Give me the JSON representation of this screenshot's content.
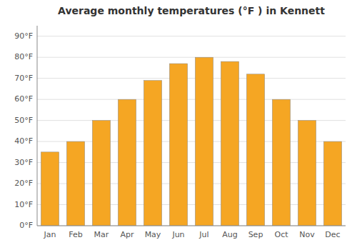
{
  "chart_data": {
    "type": "bar",
    "title": "Average monthly temperatures (°F ) in Kennett",
    "categories": [
      "Jan",
      "Feb",
      "Mar",
      "Apr",
      "May",
      "Jun",
      "Jul",
      "Aug",
      "Sep",
      "Oct",
      "Nov",
      "Dec"
    ],
    "values": [
      35,
      40,
      50,
      60,
      69,
      77,
      80,
      78,
      72,
      60,
      50,
      40
    ],
    "color": "#F5A623",
    "ylim": [
      0,
      95
    ],
    "yticks": [
      {
        "value": 0,
        "label": "0°F"
      },
      {
        "value": 10,
        "label": "10°F"
      },
      {
        "value": 20,
        "label": "20°F"
      },
      {
        "value": 30,
        "label": "30°F"
      },
      {
        "value": 40,
        "label": "40°F"
      },
      {
        "value": 50,
        "label": "50°F"
      },
      {
        "value": 60,
        "label": "60°F"
      },
      {
        "value": 70,
        "label": "70°F"
      },
      {
        "value": 80,
        "label": "80°F"
      },
      {
        "value": 90,
        "label": "90°F"
      }
    ],
    "grid": true
  }
}
